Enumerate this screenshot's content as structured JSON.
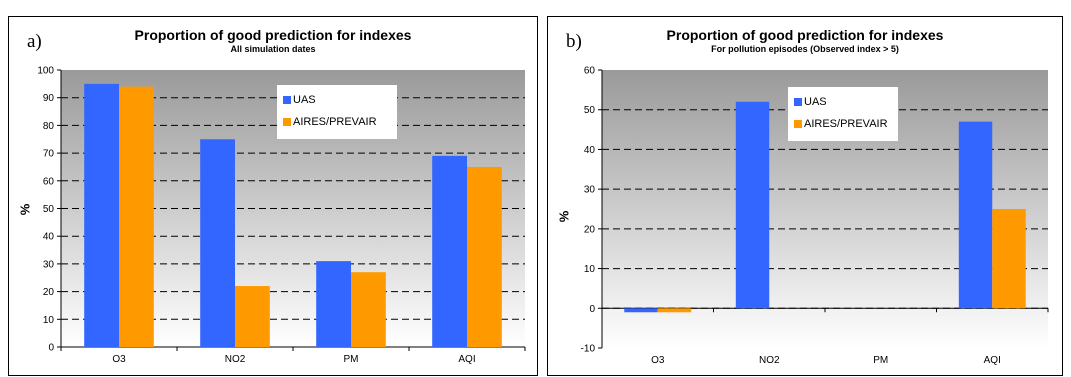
{
  "chart_data": [
    {
      "type": "bar",
      "panel_label": "a)",
      "title": "Proportion of good prediction for indexes",
      "subtitle": "All simulation dates",
      "ylabel": "%",
      "xlabel": "",
      "categories": [
        "O3",
        "NO2",
        "PM",
        "AQI"
      ],
      "series": [
        {
          "name": "UAS",
          "values": [
            95,
            75,
            31,
            69
          ],
          "color": "#3366ff"
        },
        {
          "name": "AIRES/PREVAIR",
          "values": [
            94,
            22,
            27,
            65
          ],
          "color": "#ff9900"
        }
      ],
      "ylim": [
        0,
        100
      ],
      "yticks": [
        0,
        10,
        20,
        30,
        40,
        50,
        60,
        70,
        80,
        90,
        100
      ],
      "grid": "dashed horizontal",
      "legend_position": "top-right"
    },
    {
      "type": "bar",
      "panel_label": "b)",
      "title": "Proportion of good prediction for indexes",
      "subtitle": "For pollution episodes (Observed index > 5)",
      "ylabel": "%",
      "xlabel": "",
      "categories": [
        "O3",
        "NO2",
        "PM",
        "AQI"
      ],
      "series": [
        {
          "name": "UAS",
          "values": [
            -1,
            52,
            0,
            47
          ],
          "color": "#3366ff"
        },
        {
          "name": "AIRES/PREVAIR",
          "values": [
            -1,
            0,
            0,
            25
          ],
          "color": "#ff9900"
        }
      ],
      "ylim": [
        -10,
        60
      ],
      "yticks": [
        -10,
        0,
        10,
        20,
        30,
        40,
        50,
        60
      ],
      "grid": "dashed horizontal",
      "legend_position": "top-right"
    }
  ]
}
